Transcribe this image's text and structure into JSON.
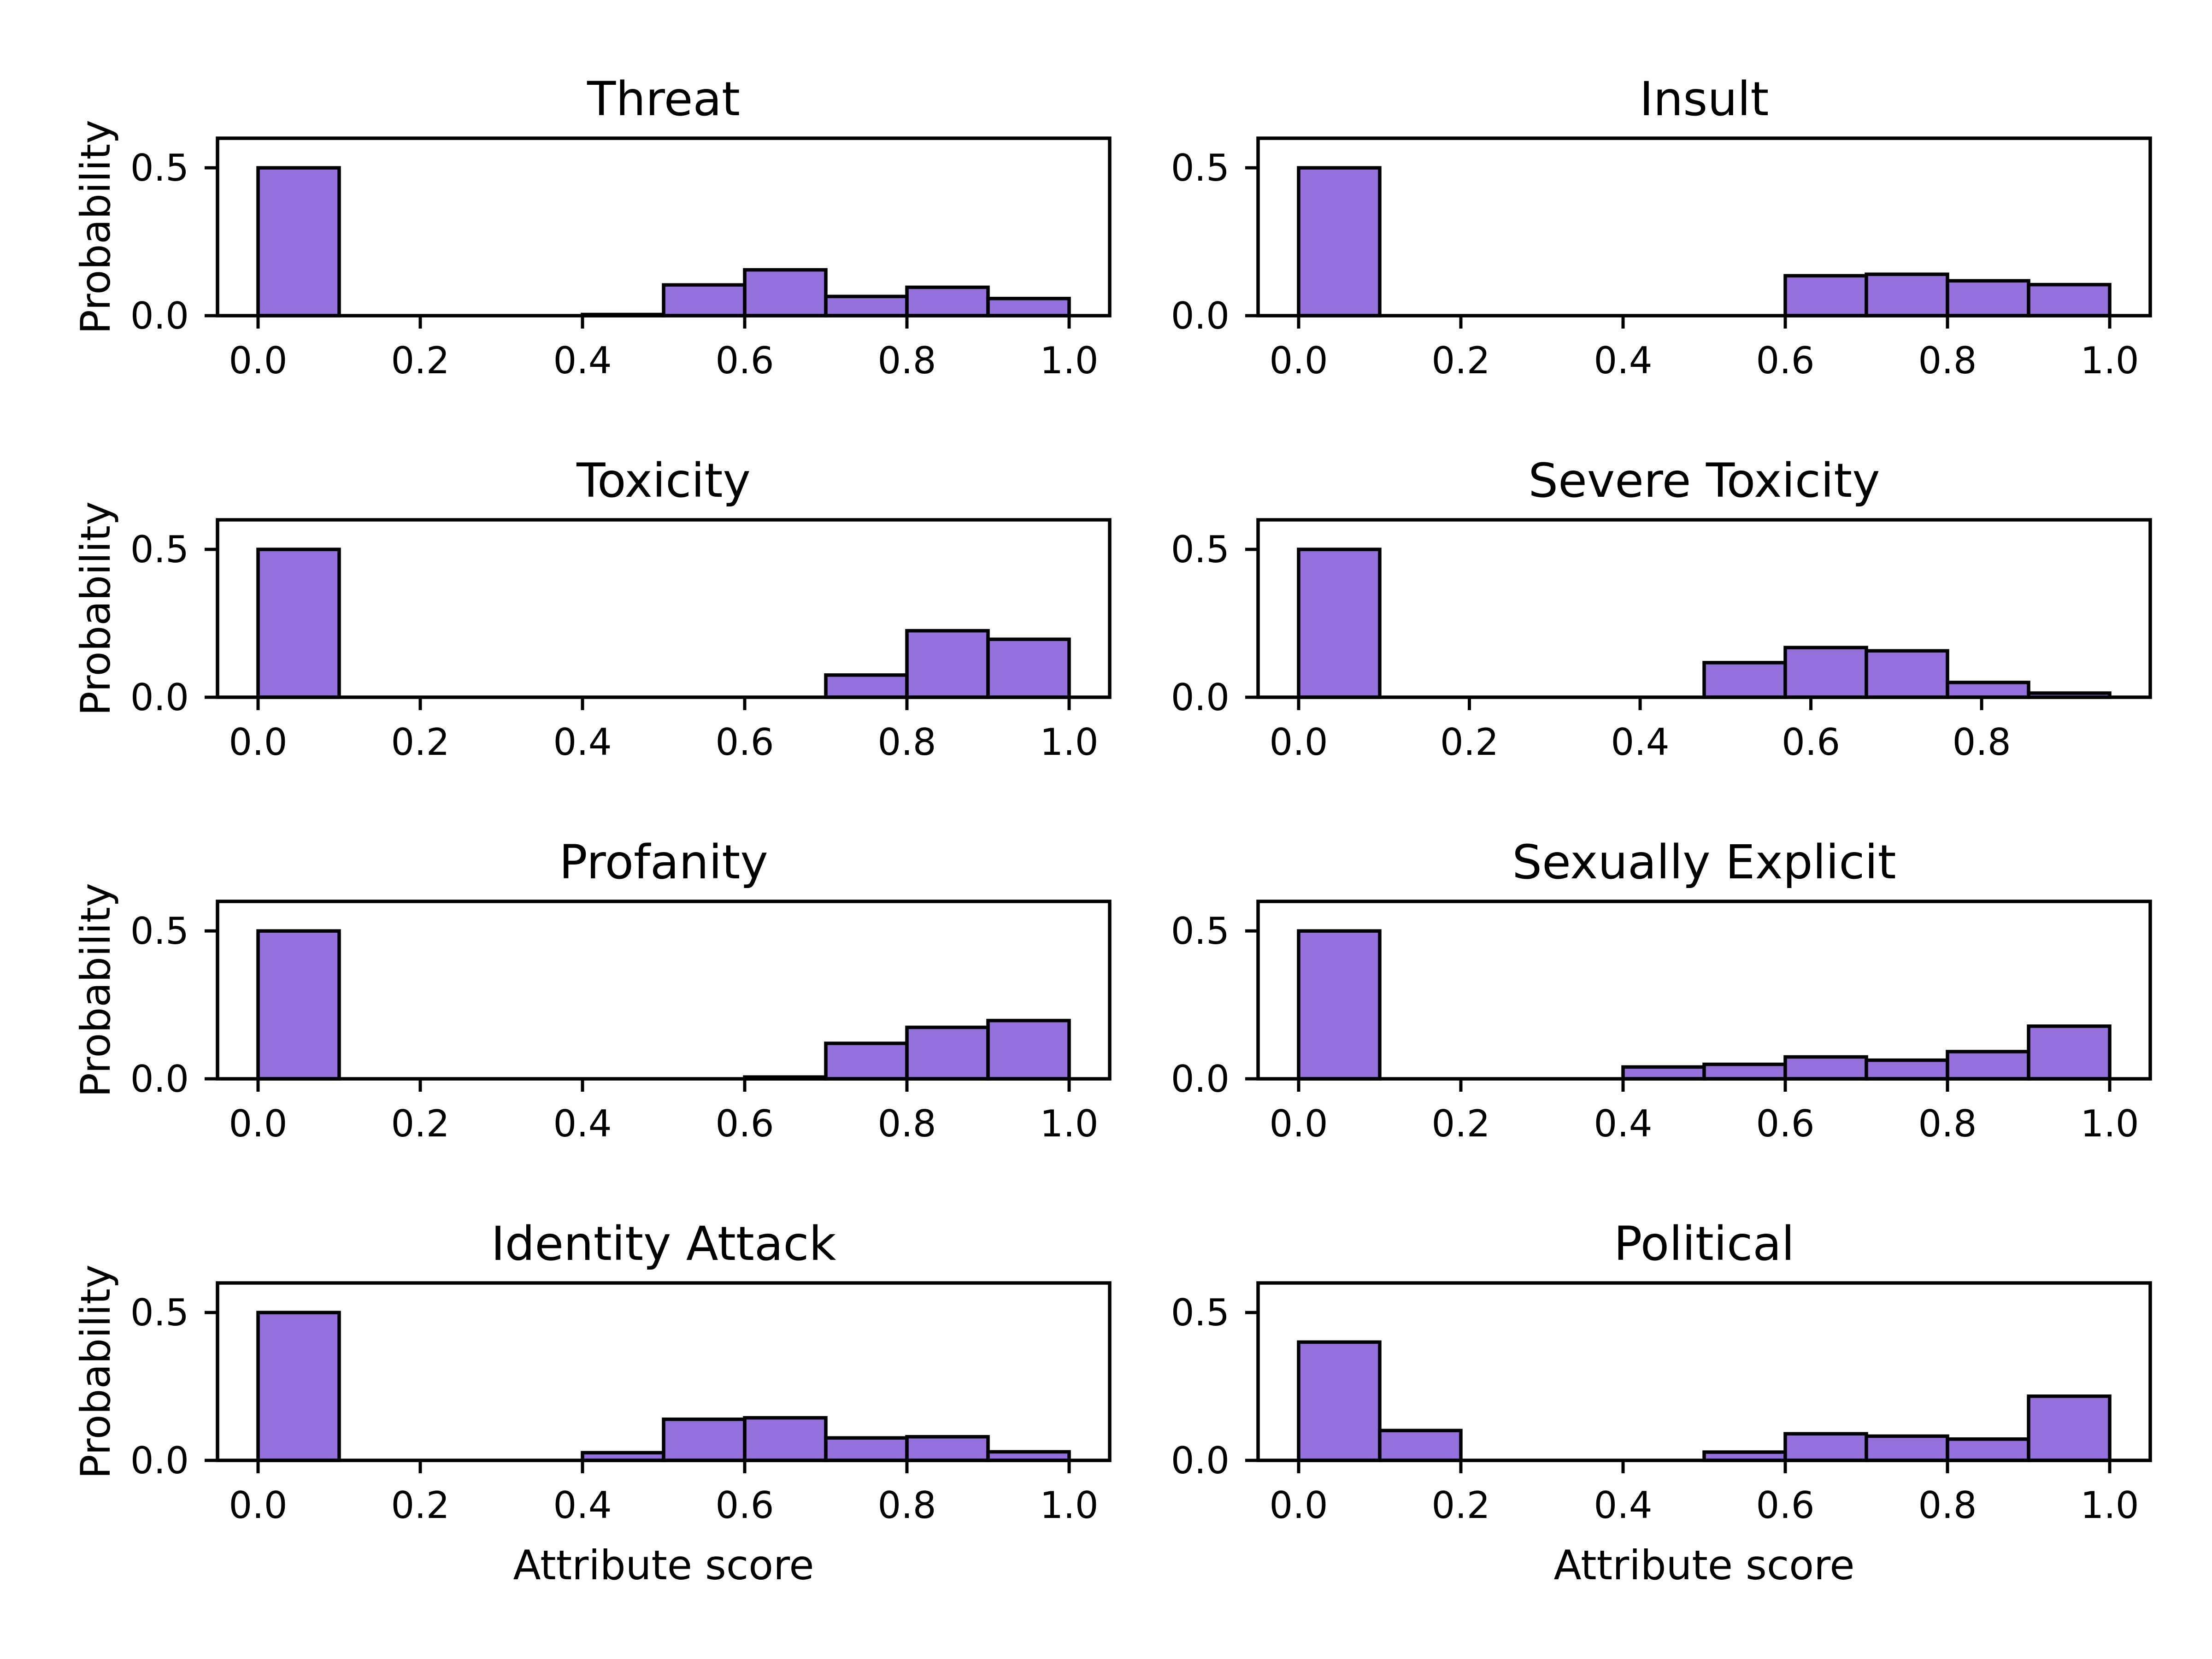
{
  "figure": {
    "background": "#ffffff",
    "bar_fill": "#9370db",
    "bar_edge": "#000000",
    "xlabel": "Attribute score",
    "ylabel": "Probability",
    "ylim": [
      0,
      0.6
    ],
    "ytick_values": [
      0.0,
      0.5
    ],
    "ytick_labels": [
      "0.0",
      "0.5"
    ]
  },
  "chart_data": [
    {
      "type": "bar",
      "title": "Threat",
      "bin_edges": [
        0,
        0.1,
        0.2,
        0.3,
        0.4,
        0.5,
        0.6,
        0.7,
        0.8,
        0.9,
        1.0
      ],
      "values": [
        0.5,
        0,
        0,
        0,
        0.004,
        0.104,
        0.155,
        0.065,
        0.096,
        0.058
      ],
      "xlim": [
        -0.05,
        1.05
      ],
      "xtick_values": [
        0.0,
        0.2,
        0.4,
        0.6,
        0.8,
        1.0
      ],
      "xtick_labels": [
        "0.0",
        "0.2",
        "0.4",
        "0.6",
        "0.8",
        "1.0"
      ],
      "show_xlabel": false,
      "show_ylabel": true
    },
    {
      "type": "bar",
      "title": "Insult",
      "bin_edges": [
        0,
        0.1,
        0.2,
        0.3,
        0.4,
        0.5,
        0.6,
        0.7,
        0.8,
        0.9,
        1.0
      ],
      "values": [
        0.5,
        0,
        0,
        0,
        0,
        0,
        0.135,
        0.14,
        0.118,
        0.105
      ],
      "xlim": [
        -0.05,
        1.05
      ],
      "xtick_values": [
        0.0,
        0.2,
        0.4,
        0.6,
        0.8,
        1.0
      ],
      "xtick_labels": [
        "0.0",
        "0.2",
        "0.4",
        "0.6",
        "0.8",
        "1.0"
      ],
      "show_xlabel": false,
      "show_ylabel": false
    },
    {
      "type": "bar",
      "title": "Toxicity",
      "bin_edges": [
        0,
        0.1,
        0.2,
        0.3,
        0.4,
        0.5,
        0.6,
        0.7,
        0.8,
        0.9,
        1.0
      ],
      "values": [
        0.5,
        0,
        0,
        0,
        0,
        0,
        0,
        0.075,
        0.225,
        0.196
      ],
      "xlim": [
        -0.05,
        1.05
      ],
      "xtick_values": [
        0.0,
        0.2,
        0.4,
        0.6,
        0.8,
        1.0
      ],
      "xtick_labels": [
        "0.0",
        "0.2",
        "0.4",
        "0.6",
        "0.8",
        "1.0"
      ],
      "show_xlabel": false,
      "show_ylabel": true
    },
    {
      "type": "bar",
      "title": "Severe Toxicity",
      "bin_edges": [
        0,
        0.095,
        0.19,
        0.285,
        0.38,
        0.475,
        0.57,
        0.665,
        0.76,
        0.855,
        0.95
      ],
      "values": [
        0.5,
        0,
        0,
        0,
        0,
        0.117,
        0.168,
        0.157,
        0.05,
        0.014
      ],
      "xlim": [
        -0.0475,
        0.9975
      ],
      "xtick_values": [
        0.0,
        0.2,
        0.4,
        0.6,
        0.8
      ],
      "xtick_labels": [
        "0.0",
        "0.2",
        "0.4",
        "0.6",
        "0.8"
      ],
      "show_xlabel": false,
      "show_ylabel": false
    },
    {
      "type": "bar",
      "title": "Profanity",
      "bin_edges": [
        0,
        0.1,
        0.2,
        0.3,
        0.4,
        0.5,
        0.6,
        0.7,
        0.8,
        0.9,
        1.0
      ],
      "values": [
        0.5,
        0,
        0,
        0,
        0,
        0,
        0.006,
        0.12,
        0.174,
        0.197
      ],
      "xlim": [
        -0.05,
        1.05
      ],
      "xtick_values": [
        0.0,
        0.2,
        0.4,
        0.6,
        0.8,
        1.0
      ],
      "xtick_labels": [
        "0.0",
        "0.2",
        "0.4",
        "0.6",
        "0.8",
        "1.0"
      ],
      "show_xlabel": false,
      "show_ylabel": true
    },
    {
      "type": "bar",
      "title": "Sexually Explicit",
      "bin_edges": [
        0,
        0.1,
        0.2,
        0.3,
        0.4,
        0.5,
        0.6,
        0.7,
        0.8,
        0.9,
        1.0
      ],
      "values": [
        0.5,
        0,
        0,
        0,
        0.04,
        0.049,
        0.074,
        0.063,
        0.092,
        0.178
      ],
      "xlim": [
        -0.05,
        1.05
      ],
      "xtick_values": [
        0.0,
        0.2,
        0.4,
        0.6,
        0.8,
        1.0
      ],
      "xtick_labels": [
        "0.0",
        "0.2",
        "0.4",
        "0.6",
        "0.8",
        "1.0"
      ],
      "show_xlabel": false,
      "show_ylabel": false
    },
    {
      "type": "bar",
      "title": "Identity Attack",
      "bin_edges": [
        0,
        0.1,
        0.2,
        0.3,
        0.4,
        0.5,
        0.6,
        0.7,
        0.8,
        0.9,
        1.0
      ],
      "values": [
        0.5,
        0,
        0,
        0,
        0.026,
        0.139,
        0.144,
        0.076,
        0.08,
        0.029
      ],
      "xlim": [
        -0.05,
        1.05
      ],
      "xtick_values": [
        0.0,
        0.2,
        0.4,
        0.6,
        0.8,
        1.0
      ],
      "xtick_labels": [
        "0.0",
        "0.2",
        "0.4",
        "0.6",
        "0.8",
        "1.0"
      ],
      "show_xlabel": true,
      "show_ylabel": true
    },
    {
      "type": "bar",
      "title": "Political",
      "bin_edges": [
        0,
        0.1,
        0.2,
        0.3,
        0.4,
        0.5,
        0.6,
        0.7,
        0.8,
        0.9,
        1.0
      ],
      "values": [
        0.4,
        0.101,
        0,
        0,
        0,
        0.028,
        0.09,
        0.082,
        0.072,
        0.217
      ],
      "xlim": [
        -0.05,
        1.05
      ],
      "xtick_values": [
        0.0,
        0.2,
        0.4,
        0.6,
        0.8,
        1.0
      ],
      "xtick_labels": [
        "0.0",
        "0.2",
        "0.4",
        "0.6",
        "0.8",
        "1.0"
      ],
      "show_xlabel": true,
      "show_ylabel": false
    }
  ]
}
